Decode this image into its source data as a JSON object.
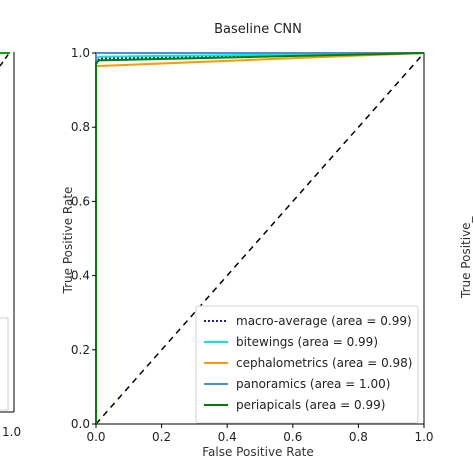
{
  "chart_data": {
    "type": "line",
    "title": "Baseline CNN",
    "xlabel": "False Positive Rate",
    "ylabel": "True Positive Rate",
    "xlim": [
      0.0,
      1.0
    ],
    "ylim": [
      0.0,
      1.0
    ],
    "xticks": [
      "0.0",
      "0.2",
      "0.4",
      "0.6",
      "0.8",
      "1.0"
    ],
    "yticks": [
      "0.0",
      "0.2",
      "0.4",
      "0.6",
      "0.8",
      "1.0"
    ],
    "grid": false,
    "legend_position": "lower-right",
    "series": [
      {
        "name": "macro-average (area = 0.99)",
        "color": "#1f1f8f",
        "style": "dotted",
        "x": [
          0.0,
          0.0,
          0.01,
          1.0
        ],
        "y": [
          0.0,
          0.97,
          0.985,
          1.0
        ]
      },
      {
        "name": "bitewings (area = 0.99)",
        "color": "#00e5e5",
        "style": "solid",
        "x": [
          0.0,
          0.0,
          0.01,
          1.0
        ],
        "y": [
          0.0,
          0.985,
          0.99,
          1.0
        ]
      },
      {
        "name": "cephalometrics (area = 0.98)",
        "color": "#ff9900",
        "style": "solid",
        "x": [
          0.0,
          0.0,
          0.01,
          1.0
        ],
        "y": [
          0.0,
          0.965,
          0.965,
          1.0
        ]
      },
      {
        "name": "panoramics (area = 1.00)",
        "color": "#4a90d9",
        "style": "solid",
        "x": [
          0.0,
          0.0,
          0.02,
          1.0
        ],
        "y": [
          0.0,
          1.0,
          1.0,
          1.0
        ]
      },
      {
        "name": "periapicals (area = 0.99)",
        "color": "#008000",
        "style": "solid",
        "x": [
          0.0,
          0.0,
          0.01,
          1.0
        ],
        "y": [
          0.0,
          0.975,
          0.98,
          1.0
        ]
      }
    ],
    "reference_line": {
      "x": [
        0.0,
        1.0
      ],
      "y": [
        0.0,
        1.0
      ],
      "color": "#000000",
      "style": "dashed"
    }
  },
  "left_panel": {
    "xtick_last": "1.0"
  },
  "right_panel": {
    "ylabel_fragment": "True Positive_"
  }
}
